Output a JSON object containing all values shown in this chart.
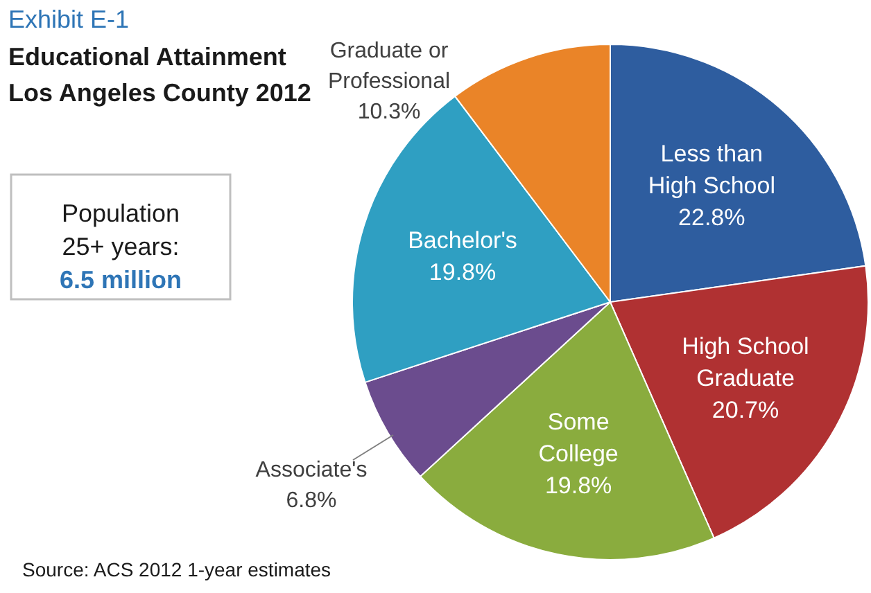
{
  "chart_data": {
    "type": "pie",
    "title": "Exhibit E-1",
    "subtitle": "Educational Attainment Los Angeles County 2012",
    "categories": [
      "Less than High School",
      "High School Graduate",
      "Some College",
      "Associate's",
      "Bachelor's",
      "Graduate or Professional"
    ],
    "values": [
      22.8,
      20.7,
      19.8,
      6.8,
      19.8,
      10.3
    ],
    "value_labels": [
      "22.8%",
      "20.7%",
      "19.8%",
      "6.8%",
      "19.8%",
      "10.3%"
    ],
    "colors": [
      "#2e5d9f",
      "#b03132",
      "#8aac3e",
      "#6b4c8e",
      "#2f9fc2",
      "#ea8428"
    ],
    "annotations": [
      "Population 25+ years:",
      "6.5 million",
      "Source: ACS 2012 1-year estimates"
    ]
  }
}
